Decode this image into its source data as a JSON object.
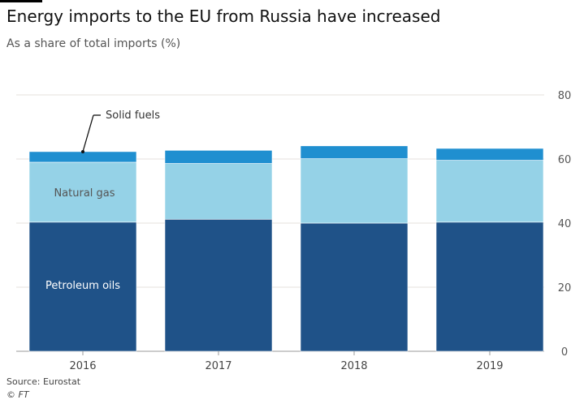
{
  "title": "Energy imports to the EU from Russia have increased",
  "subtitle": "As a share of total imports (%)",
  "source": "Source: Eurostat",
  "credit": "© FT",
  "chart_data": {
    "type": "bar",
    "stacked": true,
    "categories": [
      "2016",
      "2017",
      "2018",
      "2019"
    ],
    "series": [
      {
        "name": "Petroleum oils",
        "values": [
          40.3,
          41.2,
          40.0,
          40.3
        ],
        "color": "#1f5288"
      },
      {
        "name": "Natural gas",
        "values": [
          18.7,
          17.4,
          20.1,
          19.3
        ],
        "color": "#95d2e7"
      },
      {
        "name": "Solid fuels",
        "values": [
          3.3,
          4.1,
          4.0,
          3.7
        ],
        "color": "#1f8fd0"
      }
    ],
    "ylim": [
      0,
      80
    ],
    "yticks": [
      0,
      20,
      40,
      60,
      80
    ],
    "grid": true,
    "yaxis_side": "right",
    "labels": {
      "petroleum": "Petroleum oils",
      "gas": "Natural gas",
      "solid": "Solid fuels"
    }
  }
}
